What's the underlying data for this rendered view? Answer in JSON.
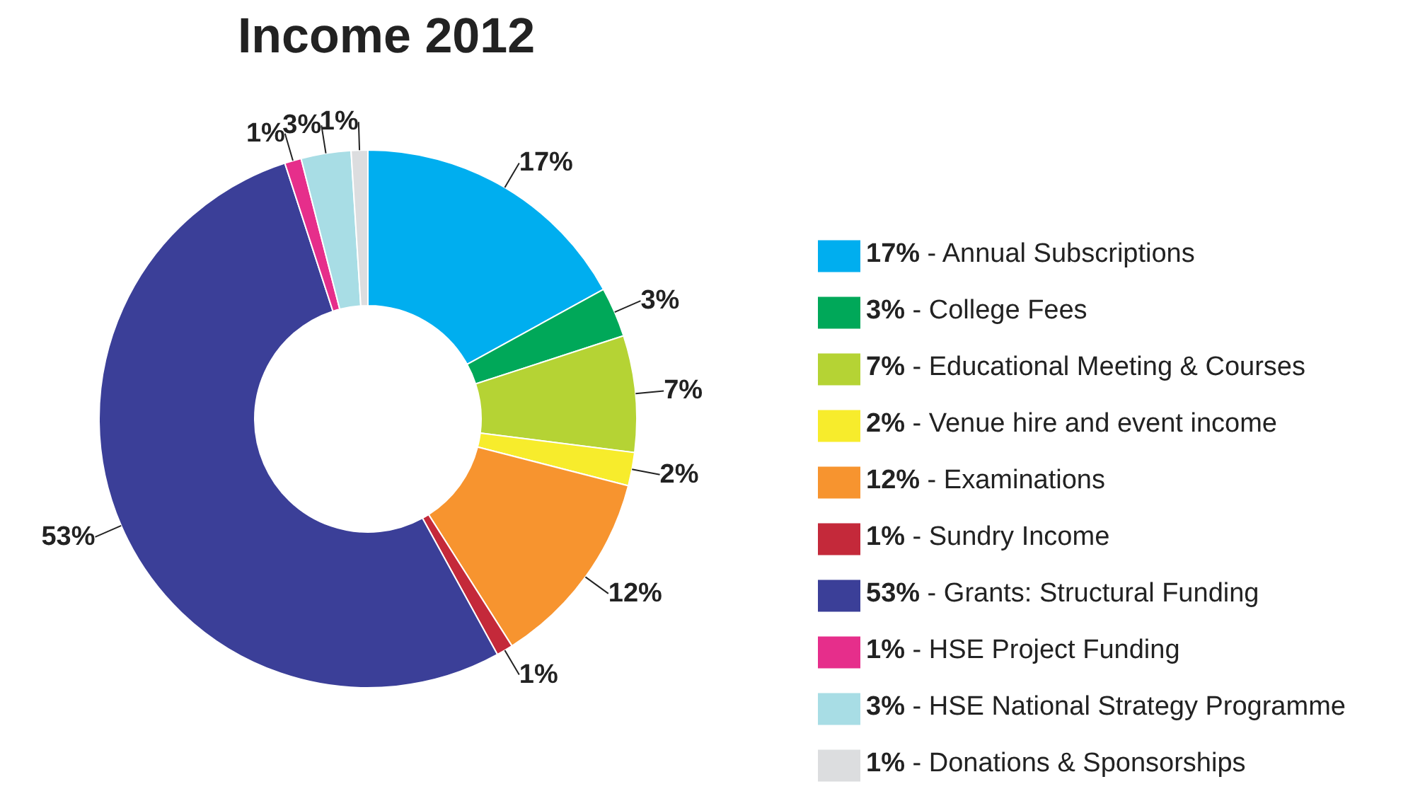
{
  "chart_data": {
    "type": "donut",
    "title": "Income 2012",
    "categories": [
      "17% - Annual Subscriptions",
      "3% - College Fees",
      "7% - Educational Meeting & Courses",
      "2% - Venue hire and event income",
      "12% - Examinations",
      "1% - Sundry Income",
      "53% - Grants: Structural Funding",
      "1% - HSE Project Funding",
      "3% - HSE National Strategy Programme",
      "1% - Donations & Sponsorships"
    ],
    "values": [
      17,
      3,
      7,
      2,
      12,
      1,
      53,
      1,
      3,
      1
    ],
    "value_labels": [
      "17%",
      "3%",
      "7%",
      "2%",
      "12%",
      "1%",
      "53%",
      "1%",
      "3%",
      "1%"
    ],
    "colors": [
      "#00aeef",
      "#00a859",
      "#b5d334",
      "#f7ec2c",
      "#f7942f",
      "#c4293a",
      "#3b3f98",
      "#e62e8b",
      "#a8dde5",
      "#dcdddf"
    ],
    "legend": "right"
  }
}
